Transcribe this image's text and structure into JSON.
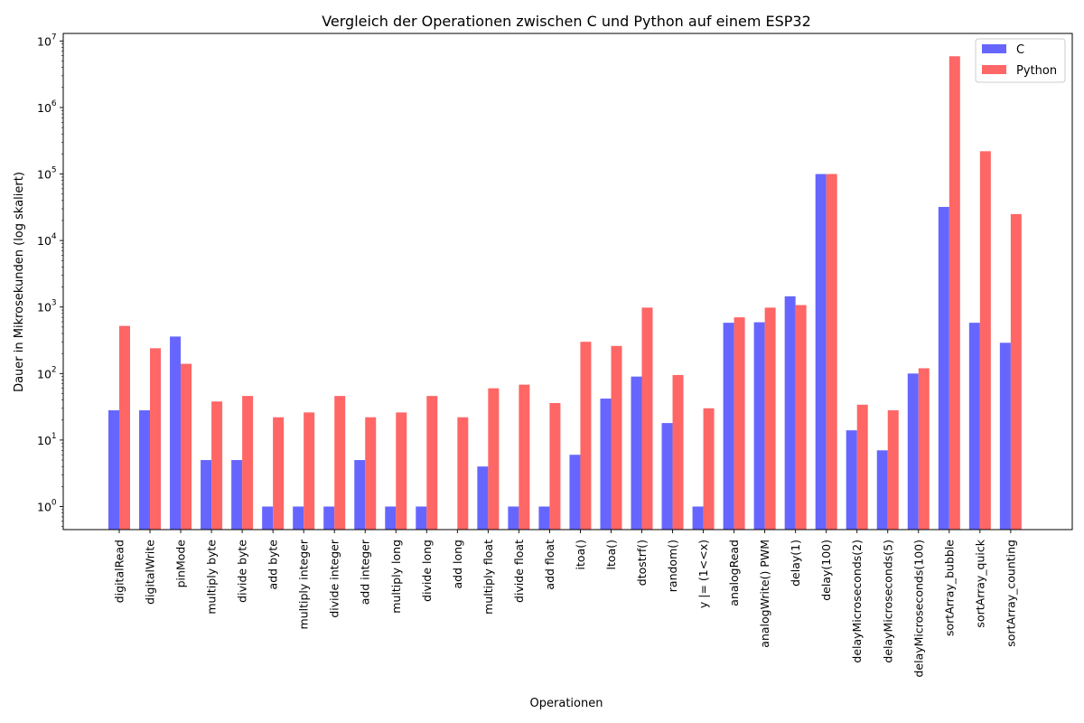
{
  "chart_data": {
    "type": "bar",
    "title": "Vergleich der Operationen zwischen C und Python auf einem ESP32",
    "xlabel": "Operationen",
    "ylabel": "Dauer in Mikrosekunden (log skaliert)",
    "yscale": "log",
    "ylim": [
      0.45,
      13000000
    ],
    "yticks": [
      {
        "value": 1,
        "base": "10",
        "exp": "0"
      },
      {
        "value": 10,
        "base": "10",
        "exp": "1"
      },
      {
        "value": 100,
        "base": "10",
        "exp": "2"
      },
      {
        "value": 1000,
        "base": "10",
        "exp": "3"
      },
      {
        "value": 10000,
        "base": "10",
        "exp": "4"
      },
      {
        "value": 100000,
        "base": "10",
        "exp": "5"
      },
      {
        "value": 1000000,
        "base": "10",
        "exp": "6"
      },
      {
        "value": 10000000,
        "base": "10",
        "exp": "7"
      }
    ],
    "legend_position": "top-right",
    "categories": [
      "digitalRead",
      "digitalWrite",
      "pinMode",
      "multiply byte",
      "divide byte",
      "add byte",
      "multiply integer",
      "divide integer",
      "add integer",
      "multiply long",
      "divide long",
      "add long",
      "multiply float",
      "divide float",
      "add float",
      "itoa()",
      "ltoa()",
      "dtostrf()",
      "random()",
      "y |= (1<<x)",
      "analogRead",
      "analogWrite() PWM",
      "delay(1)",
      "delay(100)",
      "delayMicroseconds(2)",
      "delayMicroseconds(5)",
      "delayMicroseconds(100)",
      "sortArray_bubble",
      "sortArray_quick",
      "sortArray_counting"
    ],
    "series": [
      {
        "name": "C",
        "color": "#6666ff",
        "values": [
          28,
          28,
          360,
          5,
          5,
          1,
          1,
          1,
          5,
          1,
          1,
          0,
          4,
          1,
          1,
          6,
          42,
          90,
          18,
          1,
          580,
          590,
          1450,
          100000,
          14,
          7,
          100,
          32000,
          580,
          290
        ]
      },
      {
        "name": "Python",
        "color": "#ff6666",
        "values": [
          520,
          240,
          140,
          38,
          46,
          22,
          26,
          46,
          22,
          26,
          46,
          22,
          60,
          68,
          36,
          300,
          260,
          980,
          95,
          30,
          700,
          980,
          1070,
          100000,
          34,
          28,
          120,
          5900000,
          220000,
          25000
        ]
      }
    ]
  }
}
